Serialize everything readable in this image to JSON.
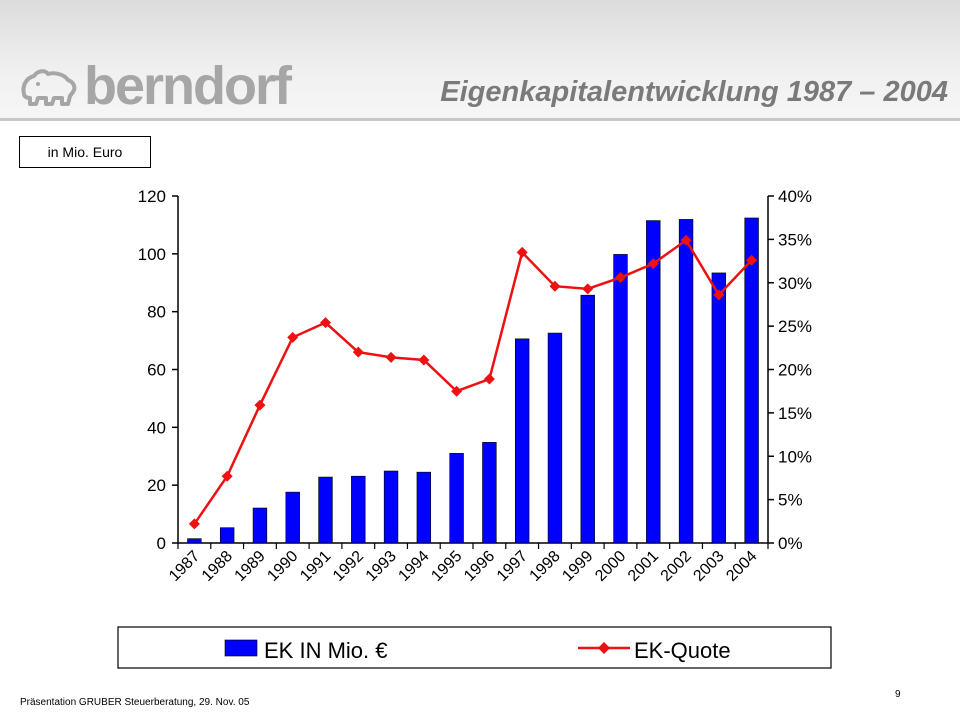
{
  "header": {
    "logo_text": "berndorf",
    "title": "Eigenkapitalentwicklung 1987 – 2004"
  },
  "unit_label": "in Mio. Euro",
  "footer": {
    "text": "Präsentation GRUBER Steuerberatung, 29. Nov. 05",
    "page_number": "9"
  },
  "colors": {
    "bar": "#0000ff",
    "line": "#ee1111",
    "logo": "#a6a6a6",
    "title": "#7a7a7a"
  },
  "chart_data": {
    "type": "bar",
    "categories": [
      "1987",
      "1988",
      "1989",
      "1990",
      "1991",
      "1992",
      "1993",
      "1994",
      "1995",
      "1996",
      "1997",
      "1998",
      "1999",
      "2000",
      "2001",
      "2002",
      "2003",
      "2004"
    ],
    "series": [
      {
        "name": "EK IN Mio. €",
        "type": "bar",
        "axis": "left",
        "values": [
          1.5,
          5.3,
          12.1,
          17.6,
          22.8,
          23.1,
          24.9,
          24.5,
          31.0,
          34.8,
          70.6,
          72.6,
          85.7,
          99.8,
          111.5,
          111.9,
          93.4,
          112.4
        ]
      },
      {
        "name": "EK-Quote",
        "type": "line",
        "axis": "right",
        "values": [
          2.2,
          7.7,
          15.9,
          23.7,
          25.4,
          22.0,
          21.4,
          21.1,
          17.5,
          18.9,
          33.5,
          29.6,
          29.3,
          30.6,
          32.2,
          34.9,
          28.6,
          32.6
        ]
      }
    ],
    "y_left": {
      "min": 0,
      "max": 120,
      "ticks": [
        "0",
        "20",
        "40",
        "60",
        "80",
        "100",
        "120"
      ]
    },
    "y_right": {
      "min": 0,
      "max": 40,
      "ticks": [
        "0%",
        "5%",
        "10%",
        "15%",
        "20%",
        "25%",
        "30%",
        "35%",
        "40%"
      ]
    },
    "grid": false,
    "legend_position": "bottom"
  }
}
